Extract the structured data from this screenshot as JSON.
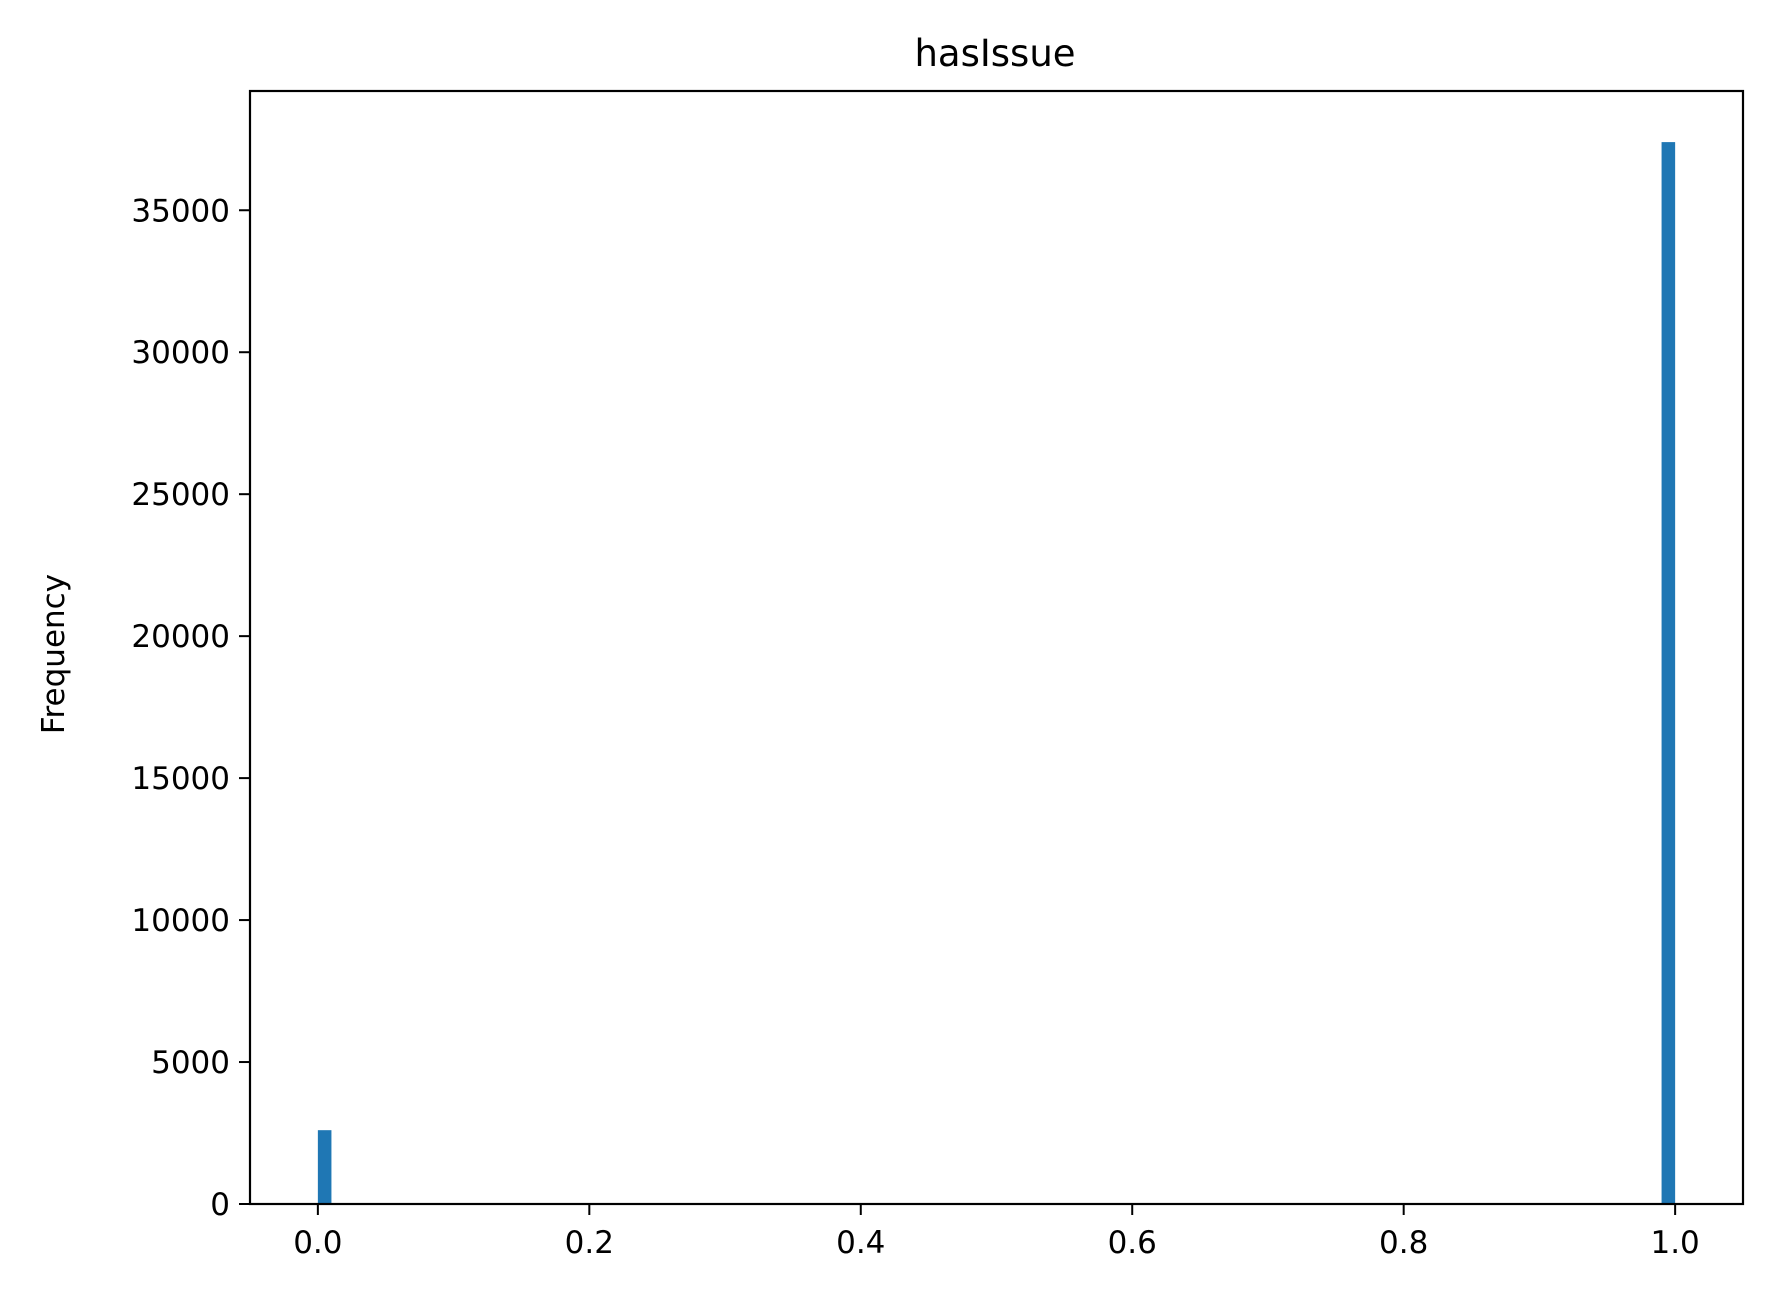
{
  "chart_data": {
    "type": "bar",
    "title": "hasIssue",
    "xlabel": "",
    "ylabel": "Frequency",
    "xlim": [
      -0.05,
      1.05
    ],
    "ylim": [
      0,
      39200
    ],
    "x_ticks": [
      {
        "value": 0.0,
        "label": "0.0"
      },
      {
        "value": 0.2,
        "label": "0.2"
      },
      {
        "value": 0.4,
        "label": "0.4"
      },
      {
        "value": 0.6,
        "label": "0.6"
      },
      {
        "value": 0.8,
        "label": "0.8"
      },
      {
        "value": 1.0,
        "label": "1.0"
      }
    ],
    "y_ticks": [
      {
        "value": 0,
        "label": "0"
      },
      {
        "value": 5000,
        "label": "5000"
      },
      {
        "value": 10000,
        "label": "10000"
      },
      {
        "value": 15000,
        "label": "15000"
      },
      {
        "value": 20000,
        "label": "20000"
      },
      {
        "value": 25000,
        "label": "25000"
      },
      {
        "value": 30000,
        "label": "30000"
      },
      {
        "value": 35000,
        "label": "35000"
      }
    ],
    "bins": [
      {
        "start": 0.0,
        "end": 0.01,
        "value": 2600
      },
      {
        "start": 0.99,
        "end": 1.0,
        "value": 37400
      }
    ],
    "grid": false,
    "color": "#1f77b4"
  }
}
